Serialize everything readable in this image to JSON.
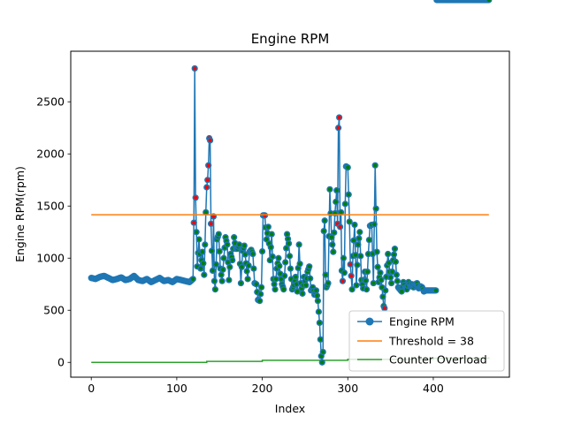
{
  "chart_data": {
    "type": "line",
    "title": "Engine RPM",
    "xlabel": "Index",
    "ylabel": "Engine RPM(rpm)",
    "xlim": [
      -24,
      489
    ],
    "ylim": [
      -142,
      2985
    ],
    "xticks": [
      0,
      100,
      200,
      300,
      400
    ],
    "yticks": [
      0,
      500,
      1000,
      1500,
      2000,
      2500
    ],
    "grid": false,
    "legend_position": "lower-right",
    "colors": {
      "rpm": "#1f77b4",
      "threshold": "#ff7f0e",
      "counter": "#2ca02c",
      "normal_marker": "#008000",
      "anomaly_marker": "#ff0000"
    },
    "series": [
      {
        "name": "Engine RPM",
        "style": "line-markers",
        "anchor_x": [
          0,
          5,
          10,
          15,
          20,
          25,
          30,
          35,
          40,
          45,
          50,
          55,
          60,
          65,
          70,
          75,
          80,
          85,
          90,
          95,
          100,
          105,
          110,
          115,
          119,
          120,
          121,
          122,
          124,
          126,
          128,
          130,
          132,
          133,
          134,
          135,
          136,
          137,
          138,
          139,
          140,
          141,
          142,
          143,
          144,
          145,
          147,
          149,
          151,
          153,
          155,
          157,
          159,
          161,
          163,
          165,
          167,
          169,
          171,
          173,
          175,
          177,
          179,
          181,
          183,
          185,
          187,
          189,
          191,
          193,
          195,
          197,
          199,
          201,
          203,
          205,
          207,
          209,
          211,
          213,
          215,
          217,
          219,
          221,
          223,
          225,
          227,
          229,
          231,
          233,
          235,
          237,
          239,
          241,
          243,
          245,
          247,
          249,
          251,
          253,
          255,
          257,
          259,
          261,
          263,
          265,
          267,
          269,
          270,
          271,
          272,
          273,
          274,
          275,
          277,
          279,
          281,
          283,
          285,
          287,
          288,
          289,
          290,
          291,
          292,
          293,
          294,
          295,
          296,
          297,
          298,
          300,
          302,
          303,
          304,
          305,
          306,
          308,
          310,
          312,
          314,
          316,
          318,
          320,
          322,
          324,
          326,
          328,
          330,
          332,
          334,
          336,
          338,
          340,
          342,
          343,
          344,
          345,
          347,
          349,
          351,
          353,
          355,
          357,
          359,
          361,
          363,
          365,
          367,
          369,
          371,
          373,
          375,
          377,
          379,
          381,
          383,
          385,
          387,
          389,
          391,
          393,
          395,
          397,
          399,
          401,
          403,
          405,
          410,
          420,
          430,
          440,
          450,
          460,
          465
        ],
        "anchor_y": [
          810,
          800,
          820,
          830,
          810,
          790,
          800,
          815,
          790,
          800,
          830,
          790,
          780,
          800,
          770,
          790,
          810,
          780,
          790,
          770,
          800,
          790,
          780,
          770,
          800,
          1340,
          2820,
          1580,
          920,
          1180,
          900,
          1060,
          840,
          1130,
          1440,
          1680,
          1750,
          1890,
          2150,
          2130,
          1330,
          1070,
          880,
          1400,
          780,
          700,
          1180,
          1230,
          900,
          780,
          1000,
          1200,
          1130,
          790,
          1040,
          980,
          1200,
          1090,
          1090,
          1130,
          760,
          1070,
          1120,
          950,
          800,
          1060,
          1080,
          1040,
          760,
          750,
          600,
          590,
          720,
          1410,
          1410,
          1180,
          1300,
          980,
          1230,
          800,
          700,
          900,
          1000,
          850,
          750,
          700,
          960,
          1230,
          1140,
          900,
          700,
          740,
          820,
          680,
          1130,
          760,
          660,
          820,
          740,
          870,
          920,
          690,
          720,
          650,
          690,
          590,
          380,
          60,
          0,
          100,
          1260,
          1360,
          840,
          720,
          760,
          1660,
          1200,
          1060,
          1430,
          1650,
          1330,
          2250,
          2350,
          1300,
          1440,
          880,
          780,
          1000,
          860,
          1520,
          1880,
          1870,
          1350,
          940,
          830,
          700,
          1020,
          1320,
          740,
          1130,
          1250,
          790,
          710,
          870,
          700,
          1040,
          1310,
          1320,
          760,
          1890,
          1060,
          770,
          860,
          720,
          540,
          520,
          690,
          820,
          1040,
          870,
          760,
          980,
          1090,
          840,
          720,
          700,
          680,
          770,
          720,
          700,
          770,
          730,
          750,
          720,
          750,
          760,
          710,
          730,
          720,
          680,
          690,
          690,
          690,
          690,
          690,
          690,
          690
        ],
        "anomaly_x": [
          120,
          121,
          122,
          135,
          136,
          137,
          138,
          139,
          140,
          143,
          203,
          288,
          289,
          290,
          291,
          294,
          303,
          304,
          343
        ]
      },
      {
        "name": "Threshold = 38",
        "style": "line",
        "x": [
          0,
          465
        ],
        "values": [
          1416,
          1416
        ]
      },
      {
        "name": "Counter Overload",
        "style": "step",
        "x": [
          0,
          135,
          200,
          300,
          400,
          465
        ],
        "values": [
          0,
          10,
          20,
          30,
          40,
          50
        ]
      }
    ]
  }
}
